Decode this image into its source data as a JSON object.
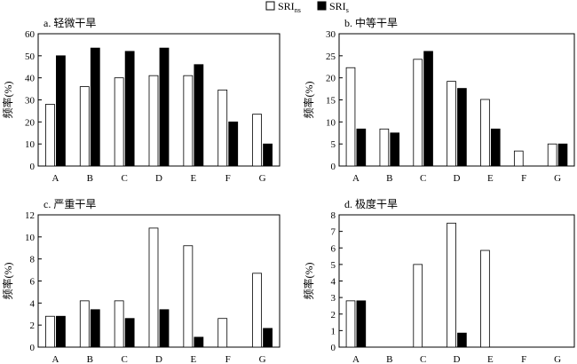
{
  "legend": {
    "items": [
      {
        "base": "SRI",
        "sub": "ns",
        "color": "#ffffff"
      },
      {
        "base": "SRI",
        "sub": "s",
        "color": "#000000"
      }
    ]
  },
  "chart_data": [
    {
      "type": "bar",
      "title": "a. 轻微干旱",
      "ylabel": "频率(%)",
      "categories": [
        "A",
        "B",
        "C",
        "D",
        "E",
        "F",
        "G"
      ],
      "ylim": [
        0,
        60
      ],
      "yticks": [
        0,
        10,
        20,
        30,
        40,
        50,
        60
      ],
      "series": [
        {
          "name": "SRIns",
          "values": [
            28,
            36,
            40,
            41,
            41,
            34.5,
            23.5
          ]
        },
        {
          "name": "SRIs",
          "values": [
            50,
            53.5,
            52,
            53.5,
            46,
            20,
            10
          ]
        }
      ]
    },
    {
      "type": "bar",
      "title": "b. 中等干旱",
      "ylabel": "频率(%)",
      "categories": [
        "A",
        "B",
        "C",
        "D",
        "E",
        "F",
        "G"
      ],
      "ylim": [
        0,
        30
      ],
      "yticks": [
        0,
        5,
        10,
        15,
        20,
        25,
        30
      ],
      "series": [
        {
          "name": "SRIns",
          "values": [
            22.3,
            8.4,
            24.2,
            19.2,
            15.1,
            3.4,
            5
          ]
        },
        {
          "name": "SRIs",
          "values": [
            8.4,
            7.5,
            26,
            17.6,
            8.4,
            0,
            5
          ]
        }
      ]
    },
    {
      "type": "bar",
      "title": "c. 严重干旱",
      "ylabel": "频率(%)",
      "categories": [
        "A",
        "B",
        "C",
        "D",
        "E",
        "F",
        "G"
      ],
      "ylim": [
        0,
        12
      ],
      "yticks": [
        0,
        2,
        4,
        6,
        8,
        10,
        12
      ],
      "series": [
        {
          "name": "SRIns",
          "values": [
            2.8,
            4.2,
            4.2,
            10.8,
            9.2,
            2.6,
            6.7
          ]
        },
        {
          "name": "SRIs",
          "values": [
            2.8,
            3.4,
            2.6,
            3.4,
            0.9,
            0,
            1.7
          ]
        }
      ]
    },
    {
      "type": "bar",
      "title": "d. 极度干旱",
      "ylabel": "频率(%)",
      "categories": [
        "A",
        "B",
        "C",
        "D",
        "E",
        "F",
        "G"
      ],
      "ylim": [
        0,
        8
      ],
      "yticks": [
        0,
        1,
        2,
        3,
        4,
        5,
        6,
        7,
        8
      ],
      "series": [
        {
          "name": "SRIns",
          "values": [
            2.8,
            0,
            5,
            7.5,
            5.85,
            0,
            0
          ]
        },
        {
          "name": "SRIs",
          "values": [
            2.8,
            0,
            0,
            0.85,
            0,
            0,
            0
          ]
        }
      ]
    }
  ]
}
